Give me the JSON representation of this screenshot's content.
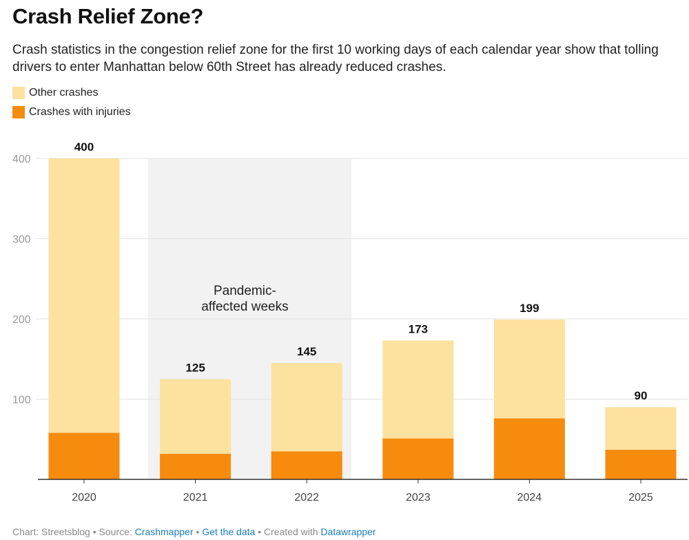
{
  "header": {
    "title": "Crash Relief Zone?",
    "subtitle": "Crash statistics in the congestion relief zone for the first 10 working days of each calendar year show that tolling drivers to enter Manhattan below 60th Street has already reduced crashes."
  },
  "legend": {
    "items": [
      {
        "label": "Other crashes",
        "color": "#fde19e"
      },
      {
        "label": "Crashes with injuries",
        "color": "#f68b0d"
      }
    ]
  },
  "chart_data": {
    "type": "bar",
    "stacked": true,
    "categories": [
      "2020",
      "2021",
      "2022",
      "2023",
      "2024",
      "2025"
    ],
    "series": [
      {
        "name": "Crashes with injuries",
        "color": "#f68b0d",
        "values": [
          58,
          32,
          35,
          51,
          76,
          37
        ]
      },
      {
        "name": "Other crashes",
        "color": "#fde19e",
        "values": [
          342,
          93,
          110,
          122,
          123,
          53
        ]
      }
    ],
    "totals": [
      400,
      125,
      145,
      173,
      199,
      90
    ],
    "ylim": [
      0,
      400
    ],
    "yticks": [
      100,
      200,
      300,
      400
    ],
    "grid": true,
    "annotation": {
      "text_lines": [
        "Pandemic-",
        "affected weeks"
      ],
      "range": [
        "2021",
        "2022"
      ],
      "shade_color": "#f2f2f2"
    }
  },
  "footer": {
    "chart_credit": "Chart: Streetsblog",
    "source_label": "Source:",
    "source_link": "Crashmapper",
    "data_link": "Get the data",
    "created_label": "Created with",
    "tool_link": "Datawrapper",
    "separator": "•"
  }
}
